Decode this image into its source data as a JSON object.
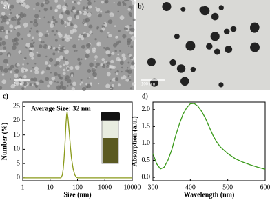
{
  "images": [
    {
      "panel": "a)",
      "scale_bar": "1μm"
    },
    {
      "panel": "b)",
      "scale_bar": "100 nm"
    }
  ],
  "chart_data": [
    {
      "type": "line",
      "panel": "c)",
      "annotation": "Average Size: 32 nm",
      "x_label": "Size (nm)",
      "y_label": "Number (%)",
      "log_x": true,
      "color": "#8a9a1a",
      "x": [
        1,
        10,
        20,
        25,
        28,
        30,
        32,
        35,
        38,
        40,
        42,
        45,
        50,
        55,
        60,
        70,
        80,
        90,
        100,
        200,
        1000,
        10000
      ],
      "values": [
        0,
        0,
        0,
        0,
        1,
        3,
        6,
        12,
        19,
        22,
        23,
        21,
        16,
        11,
        7,
        3,
        1,
        0.3,
        0,
        0,
        0,
        0
      ],
      "xlim": [
        1,
        10000
      ],
      "xticks": [
        1,
        10,
        100,
        1000,
        10000
      ],
      "ylim": [
        -1,
        26.5
      ],
      "yticks": [
        0,
        5,
        10,
        15,
        20,
        25
      ]
    },
    {
      "type": "line",
      "panel": "d)",
      "x_label": "Wavelength (nm)",
      "y_label": "Absorption (a.u.)",
      "log_x": false,
      "color": "#3a9a1a",
      "x": [
        300,
        310,
        320,
        330,
        340,
        350,
        360,
        370,
        380,
        390,
        400,
        410,
        420,
        430,
        440,
        450,
        460,
        470,
        480,
        500,
        520,
        540,
        560,
        580,
        600
      ],
      "values": [
        0.7,
        0.4,
        0.25,
        0.3,
        0.5,
        0.8,
        1.2,
        1.55,
        1.85,
        2.05,
        2.17,
        2.18,
        2.1,
        1.95,
        1.75,
        1.5,
        1.25,
        1.05,
        0.9,
        0.7,
        0.55,
        0.45,
        0.37,
        0.3,
        0.24
      ],
      "xlim": [
        300,
        600
      ],
      "xticks": [
        300,
        400,
        500,
        600
      ],
      "ylim": [
        -0.1,
        2.22
      ],
      "yticks": [
        {
          "value": 0,
          "label": "0.0"
        },
        {
          "value": 0.5,
          "label": "0.5"
        },
        {
          "value": 1,
          "label": "1.0"
        },
        {
          "value": 1.5,
          "label": "1.5"
        },
        {
          "value": 2,
          "label": "2.0"
        }
      ]
    }
  ]
}
